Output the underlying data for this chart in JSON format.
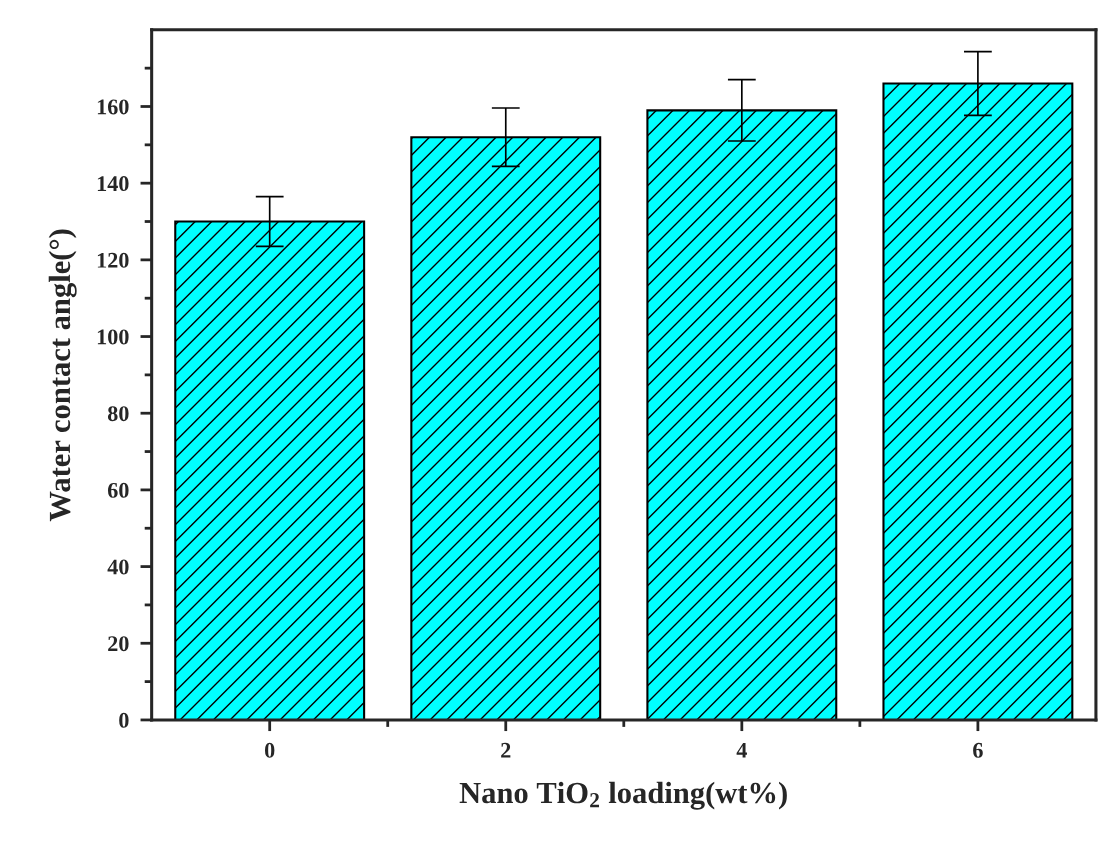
{
  "chart_data": {
    "type": "bar",
    "xlabel": "Nano TiO$_{2}$ loading(wt%)",
    "ylabel": "Water contact angle(°)",
    "x": [
      0,
      2,
      4,
      6
    ],
    "values": [
      130,
      152,
      159,
      166
    ],
    "errors": [
      6.5,
      7.6,
      8,
      8.3
    ],
    "color": "#00ffff",
    "xlim": [
      -1,
      7
    ],
    "xticks": [
      0,
      {
        "value": 1,
        "label": null
      },
      2,
      {
        "value": 3,
        "label": null
      },
      4,
      {
        "value": 5,
        "label": null
      },
      6
    ],
    "ylim": [
      0,
      180
    ],
    "yticks": [
      0,
      {
        "value": 10,
        "label": null
      },
      20,
      {
        "value": 30,
        "label": null
      },
      40,
      {
        "value": 50,
        "label": null
      },
      60,
      {
        "value": 70,
        "label": null
      },
      80,
      {
        "value": 90,
        "label": null
      },
      100,
      {
        "value": 110,
        "label": null
      },
      120,
      {
        "value": 130,
        "label": null
      },
      140,
      {
        "value": 150,
        "label": null
      },
      160,
      {
        "value": 170,
        "label": null
      }
    ],
    "grid": false,
    "legend": false
  }
}
